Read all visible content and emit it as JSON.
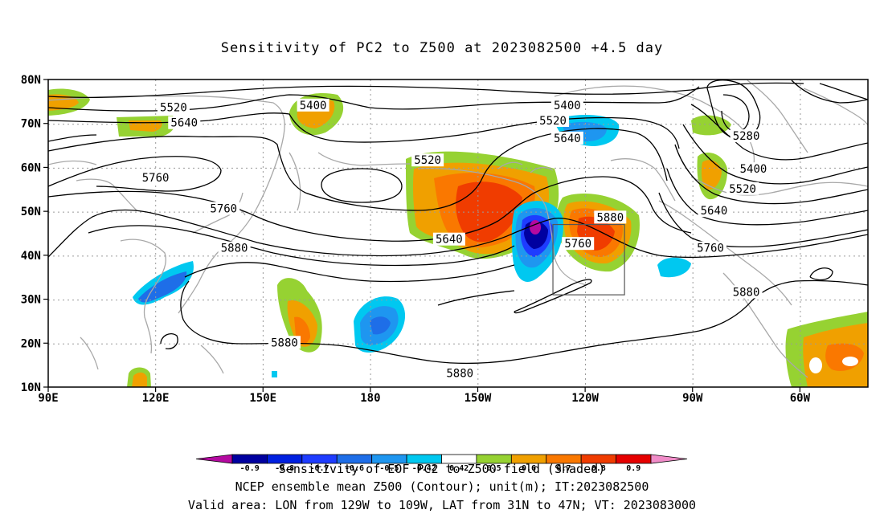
{
  "title": "Sensitivity of PC2 to Z500 at 2023082500 +4.5 day",
  "lat_labels": [
    "80N",
    "70N",
    "60N",
    "50N",
    "40N",
    "30N",
    "20N",
    "10N"
  ],
  "lon_labels": [
    "90E",
    "120E",
    "150E",
    "180",
    "150W",
    "120W",
    "90W",
    "60W"
  ],
  "contours": [
    {
      "text": "5520",
      "lon": 125,
      "lat": 73.5
    },
    {
      "text": "5640",
      "lon": 128,
      "lat": 70
    },
    {
      "text": "5400",
      "lon": 164,
      "lat": 74
    },
    {
      "text": "5400",
      "lon": -125,
      "lat": 74
    },
    {
      "text": "5520",
      "lon": -129,
      "lat": 70.5
    },
    {
      "text": "5640",
      "lon": -125,
      "lat": 66.5
    },
    {
      "text": "5520",
      "lon": -164,
      "lat": 61.5
    },
    {
      "text": "5760",
      "lon": 120,
      "lat": 57.5
    },
    {
      "text": "5760",
      "lon": 139,
      "lat": 50.5
    },
    {
      "text": "5640",
      "lon": -158,
      "lat": 43.5
    },
    {
      "text": "5880",
      "lon": 142,
      "lat": 41.5
    },
    {
      "text": "5760",
      "lon": -122,
      "lat": 42.5
    },
    {
      "text": "5880",
      "lon": -113,
      "lat": 48.5
    },
    {
      "text": "5280",
      "lon": -75,
      "lat": 67
    },
    {
      "text": "5400",
      "lon": -73,
      "lat": 59.5
    },
    {
      "text": "5520",
      "lon": -76,
      "lat": 55
    },
    {
      "text": "5640",
      "lon": -84,
      "lat": 50
    },
    {
      "text": "5760",
      "lon": -85,
      "lat": 41.5
    },
    {
      "text": "5880",
      "lon": -75,
      "lat": 31.5
    },
    {
      "text": "5880",
      "lon": 156,
      "lat": 20
    },
    {
      "text": "5880",
      "lon": -155,
      "lat": 13
    }
  ],
  "valid_area": {
    "lon_min": -129,
    "lon_max": -109,
    "lat_min": 31,
    "lat_max": 47
  },
  "colorbar": {
    "labels": [
      "-0.9",
      "-0.8",
      "-0.7",
      "-0.6",
      "-0.5",
      "-0.42",
      "0.42",
      "0.5",
      "0.6",
      "0.7",
      "0.8",
      "0.9"
    ],
    "colors": [
      "#0000a0",
      "#0020e0",
      "#1e3cff",
      "#1e6ee8",
      "#1e96f0",
      "#00c8f0",
      "#ffffff",
      "#96d232",
      "#f0a000",
      "#fa7800",
      "#f03c00",
      "#e60000"
    ],
    "low_color": "#b40aa0",
    "high_color": "#f08cc8"
  },
  "footer": {
    "line1": "Sensitivity of EOF PC2 to Z500 field (Shaded)",
    "line2": "NCEP ensemble mean Z500 (Contour); unit(m); IT:2023082500",
    "line3": "Valid area: LON from 129W to 109W, LAT from 31N to 47N; VT: 2023083000"
  }
}
